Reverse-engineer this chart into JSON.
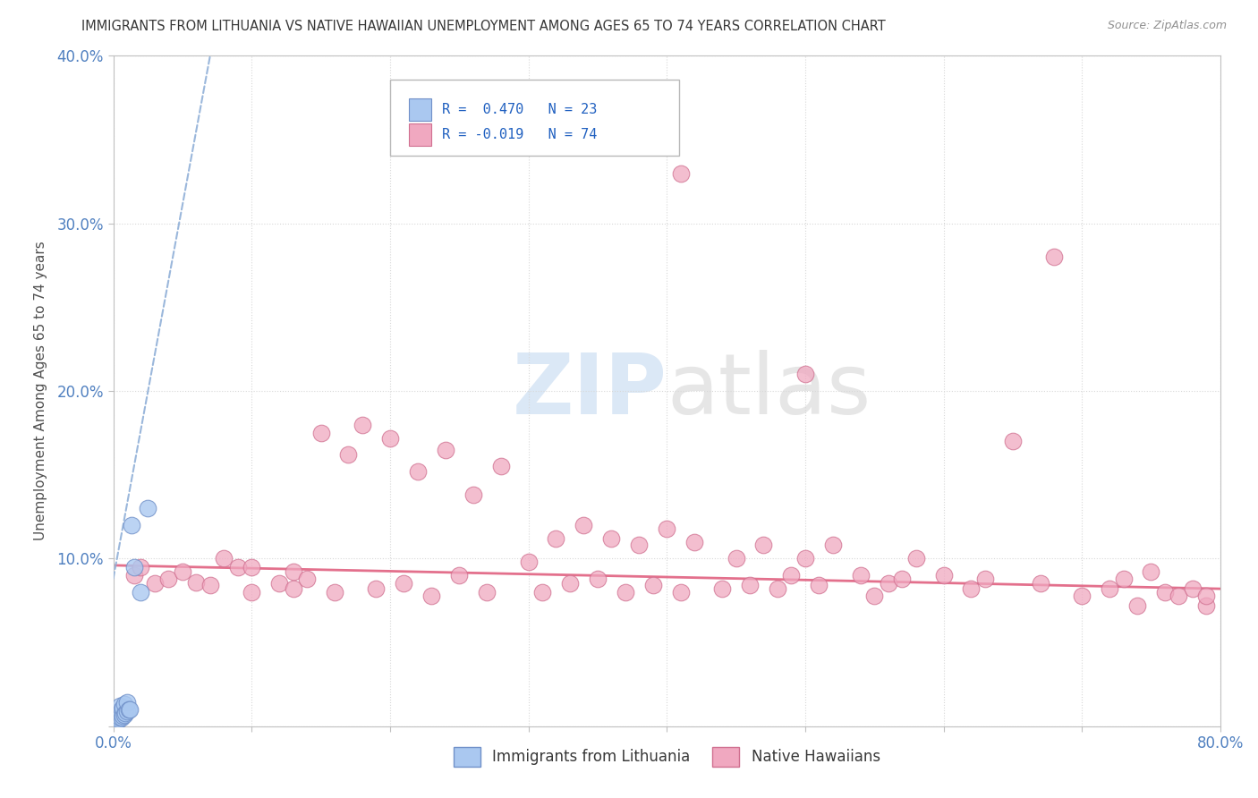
{
  "title": "IMMIGRANTS FROM LITHUANIA VS NATIVE HAWAIIAN UNEMPLOYMENT AMONG AGES 65 TO 74 YEARS CORRELATION CHART",
  "source": "Source: ZipAtlas.com",
  "ylabel": "Unemployment Among Ages 65 to 74 years",
  "xlim": [
    0,
    0.8
  ],
  "ylim": [
    0,
    0.4
  ],
  "legend_r1": "R =  0.470",
  "legend_n1": "N = 23",
  "legend_r2": "R = -0.019",
  "legend_n2": "N = 74",
  "blue_color": "#aac8f0",
  "blue_edge": "#7090c8",
  "pink_color": "#f0a8c0",
  "pink_edge": "#d07090",
  "blue_line_color": "#90b0d8",
  "pink_line_color": "#e06080",
  "title_color": "#383838",
  "axis_tick_color": "#5080c0",
  "ylabel_color": "#505050",
  "source_color": "#909090",
  "watermark_color": "#c8ddf0",
  "background_color": "#ffffff",
  "grid_color": "#d8d8d8",
  "legend_text_color": "#2060c0",
  "legend_border_color": "#b8b8b8",
  "blue_x": [
    0.002,
    0.003,
    0.003,
    0.004,
    0.004,
    0.005,
    0.005,
    0.005,
    0.006,
    0.006,
    0.007,
    0.007,
    0.008,
    0.008,
    0.009,
    0.01,
    0.01,
    0.011,
    0.012,
    0.013,
    0.015,
    0.02,
    0.025
  ],
  "blue_y": [
    0.005,
    0.003,
    0.007,
    0.004,
    0.009,
    0.005,
    0.008,
    0.012,
    0.005,
    0.01,
    0.006,
    0.011,
    0.007,
    0.013,
    0.008,
    0.009,
    0.014,
    0.01,
    0.01,
    0.12,
    0.095,
    0.08,
    0.13
  ],
  "blue_trend_x": [
    0.0,
    0.07
  ],
  "blue_trend_y": [
    0.088,
    0.4
  ],
  "pink_trend_x": [
    0.0,
    0.8
  ],
  "pink_trend_y": [
    0.096,
    0.082
  ],
  "pink_x": [
    0.015,
    0.02,
    0.03,
    0.04,
    0.05,
    0.06,
    0.07,
    0.08,
    0.09,
    0.1,
    0.1,
    0.12,
    0.13,
    0.13,
    0.14,
    0.15,
    0.16,
    0.17,
    0.18,
    0.19,
    0.2,
    0.21,
    0.22,
    0.23,
    0.24,
    0.25,
    0.26,
    0.27,
    0.28,
    0.3,
    0.31,
    0.32,
    0.33,
    0.34,
    0.35,
    0.36,
    0.37,
    0.38,
    0.39,
    0.4,
    0.41,
    0.42,
    0.44,
    0.45,
    0.46,
    0.47,
    0.48,
    0.49,
    0.5,
    0.51,
    0.52,
    0.54,
    0.55,
    0.56,
    0.57,
    0.58,
    0.6,
    0.62,
    0.63,
    0.65,
    0.67,
    0.7,
    0.72,
    0.73,
    0.74,
    0.75,
    0.76,
    0.77,
    0.78,
    0.79,
    0.79,
    0.41,
    0.5,
    0.68
  ],
  "pink_y": [
    0.09,
    0.095,
    0.085,
    0.088,
    0.092,
    0.086,
    0.084,
    0.1,
    0.095,
    0.08,
    0.095,
    0.085,
    0.092,
    0.082,
    0.088,
    0.175,
    0.08,
    0.162,
    0.18,
    0.082,
    0.172,
    0.085,
    0.152,
    0.078,
    0.165,
    0.09,
    0.138,
    0.08,
    0.155,
    0.098,
    0.08,
    0.112,
    0.085,
    0.12,
    0.088,
    0.112,
    0.08,
    0.108,
    0.084,
    0.118,
    0.08,
    0.11,
    0.082,
    0.1,
    0.084,
    0.108,
    0.082,
    0.09,
    0.1,
    0.084,
    0.108,
    0.09,
    0.078,
    0.085,
    0.088,
    0.1,
    0.09,
    0.082,
    0.088,
    0.17,
    0.085,
    0.078,
    0.082,
    0.088,
    0.072,
    0.092,
    0.08,
    0.078,
    0.082,
    0.072,
    0.078,
    0.33,
    0.21,
    0.28
  ]
}
